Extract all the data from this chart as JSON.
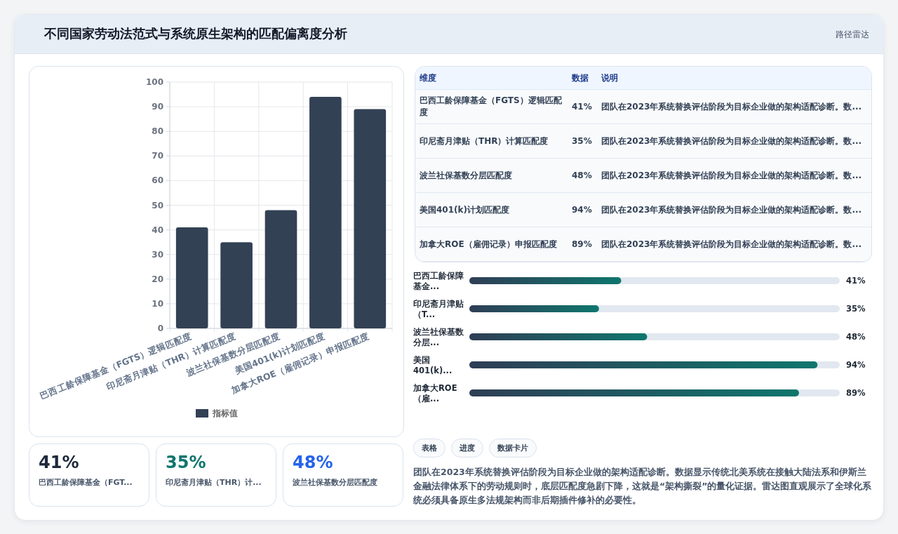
{
  "chart_data": [
    {
      "type": "other",
      "title": "不同国家劳动法范式与系统原生架构的匹配偏离度分析",
      "subtitle": "路径雷达"
    },
    {
      "type": "bar",
      "categories": [
        "巴西工龄保障基金（FGTS）逻辑匹配度",
        "印尼斋月津贴（THR）计算匹配度",
        "波兰社保基数分层匹配度",
        "美国401(k)计划匹配度",
        "加拿大ROE（雇佣记录）申报匹配度"
      ],
      "series": [
        {
          "name": "指标值",
          "color": "#334155",
          "values": [
            41,
            35,
            48,
            94,
            89
          ]
        }
      ],
      "ylim": [
        0,
        100
      ],
      "yticks": [
        0,
        10,
        20,
        30,
        40,
        50,
        60,
        70,
        80,
        90,
        100
      ],
      "grid": true,
      "legend": "bottom"
    },
    {
      "type": "other",
      "categories": [
        "巴西工龄保障基金（FGTS）逻辑匹配度",
        "印尼斋月津贴（THR）计算匹配度",
        "波兰社保基数分层匹配度",
        "美国401(k)计划匹配度",
        "加拿大ROE（雇佣记录）申报匹配度"
      ],
      "value_labels": [
        "41%",
        "35%",
        "48%",
        "94%",
        "89%"
      ],
      "annotations": [
        "维度",
        "数据",
        "说明",
        "团队在2023年系统替换评估阶段为目标企业做的架构适配诊断。数...",
        "团队在2023年系统替换评估阶段为目标企业做的架构适配诊断。数...",
        "团队在2023年系统替换评估阶段为目标企业做的架构适配诊断。数...",
        "团队在2023年系统替换评估阶段为目标企业做的架构适配诊断。数...",
        "团队在2023年系统替换评估阶段为目标企业做的架构适配诊断。数..."
      ]
    },
    {
      "type": "bar",
      "orientation": "horizontal",
      "categories": [
        "巴西工龄保障基金...",
        "印尼斋月津贴（T...",
        "波兰社保基数分层...",
        "美国401(k)...",
        "加拿大ROE（雇..."
      ],
      "values": [
        41,
        35,
        48,
        94,
        89
      ],
      "value_labels": [
        "41%",
        "35%",
        "48%",
        "94%",
        "89%"
      ],
      "color": "#0f766e",
      "xlim": [
        0,
        100
      ]
    },
    {
      "type": "other",
      "categories": [
        "巴西工龄保障基金（FGT...",
        "印尼斋月津贴（THR）计...",
        "波兰社保基数分层匹配度"
      ],
      "value_labels": [
        "41%",
        "35%",
        "48%"
      ],
      "colors": [
        "#1e293b",
        "#0f766e",
        "#2563eb"
      ]
    },
    {
      "type": "other",
      "annotations": [
        "表格",
        "进度",
        "数据卡片",
        "团队在2023年系统替换评估阶段为目标企业做的架构适配诊断。数据显示传统北美系统在接触大陆法系和伊斯兰金融法律体系下的劳动规则时，底层匹配度急剧下降，这就是“架构撕裂”的量化证据。雷达图直观展示了全球化系统必须具备原生多法规架构而非后期插件修补的必要性。"
      ]
    }
  ]
}
